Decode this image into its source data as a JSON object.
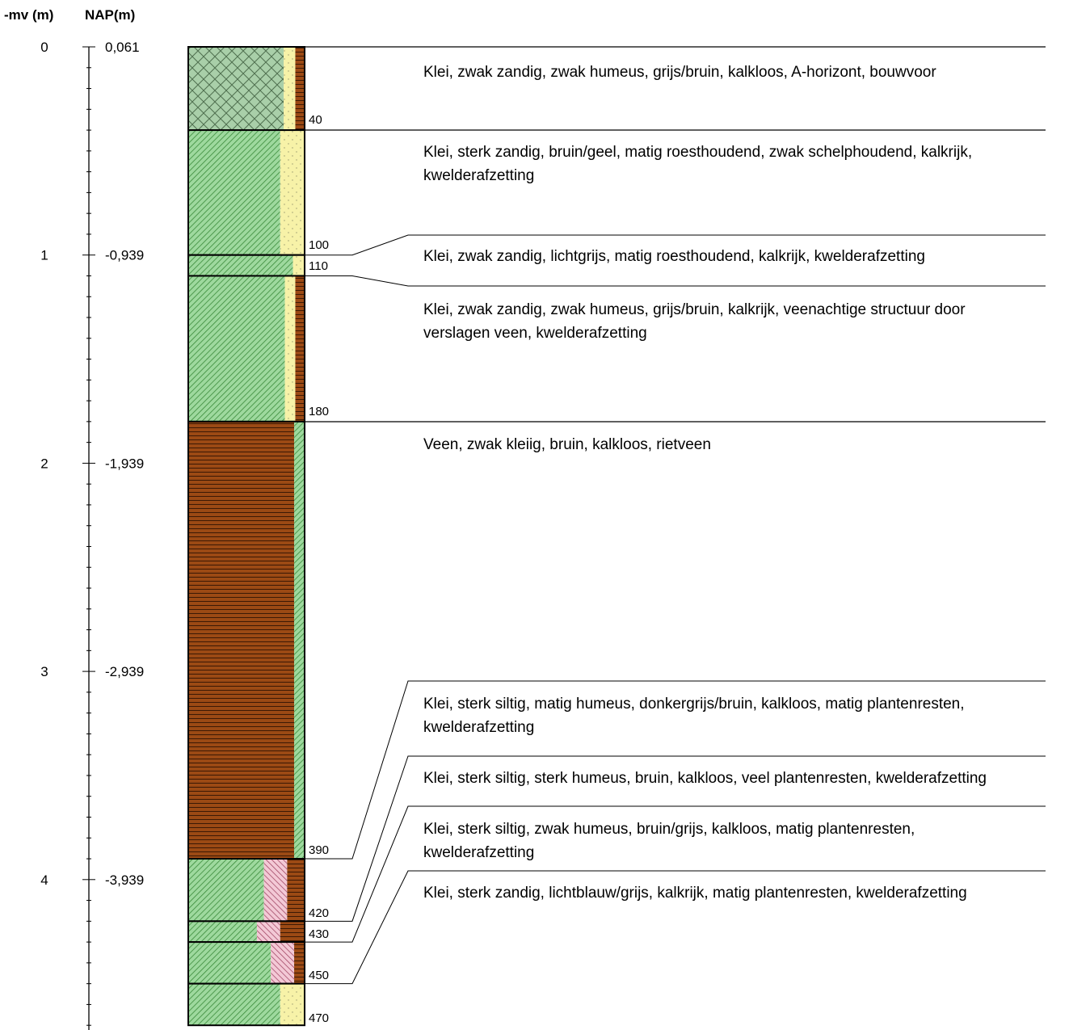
{
  "headers": {
    "mv": "-mv (m)",
    "nap": "NAP(m)"
  },
  "axis": {
    "mv_labels": [
      "0",
      "1",
      "2",
      "3",
      "4"
    ],
    "nap_labels": [
      "0,061",
      "-0,939",
      "-1,939",
      "-2,939",
      "-3,939"
    ]
  },
  "colors": {
    "clay": "#9ed99e",
    "clay_hatch": "#3a8a3a",
    "peat": "#9c4a14",
    "peat_line": "#3d1a05",
    "sand": "#f7f2a8",
    "silt": "#f3c9d6",
    "silt_hatch": "#9a3a5a",
    "topsoil": "#a9cfa9"
  },
  "layers": [
    {
      "top": 0,
      "bottom": 40,
      "depth_label": "40",
      "lines": [
        "Klei, zwak zandig, zwak humeus, grijs/bruin, kalkloos, A-horizont, bouwvoor"
      ],
      "columns": [
        [
          "topsoil",
          0.82
        ],
        [
          "sand",
          0.1
        ],
        [
          "peat",
          0.08
        ]
      ]
    },
    {
      "top": 40,
      "bottom": 100,
      "depth_label": "100",
      "lines": [
        "Klei, sterk zandig, bruin/geel, matig roesthoudend, zwak schelphoudend, kalkrijk,",
        "kwelderafzetting"
      ],
      "columns": [
        [
          "clay",
          0.79
        ],
        [
          "sand",
          0.21
        ]
      ]
    },
    {
      "top": 100,
      "bottom": 110,
      "depth_label": "110",
      "lines": [
        "Klei, zwak zandig, lichtgrijs, matig roesthoudend, kalkrijk, kwelderafzetting"
      ],
      "columns": [
        [
          "clay",
          0.9
        ],
        [
          "sand",
          0.1
        ]
      ]
    },
    {
      "top": 110,
      "bottom": 180,
      "depth_label": "180",
      "lines": [
        "Klei, zwak zandig, zwak humeus, grijs/bruin, kalkrijk, veenachtige structuur door",
        "verslagen veen, kwelderafzetting"
      ],
      "columns": [
        [
          "clay",
          0.83
        ],
        [
          "sand",
          0.09
        ],
        [
          "peat",
          0.08
        ]
      ]
    },
    {
      "top": 180,
      "bottom": 390,
      "depth_label": "390",
      "lines": [
        "Veen, zwak kleiig, bruin, kalkloos, rietveen"
      ],
      "columns": [
        [
          "peat",
          0.91
        ],
        [
          "clay",
          0.09
        ]
      ]
    },
    {
      "top": 390,
      "bottom": 420,
      "depth_label": "420",
      "lines": [
        "Klei, sterk siltig, matig humeus, donkergrijs/bruin, kalkloos, matig plantenresten,",
        "kwelderafzetting"
      ],
      "columns": [
        [
          "clay",
          0.65
        ],
        [
          "silt",
          0.2
        ],
        [
          "peat",
          0.15
        ]
      ]
    },
    {
      "top": 420,
      "bottom": 430,
      "depth_label": "430",
      "lines": [
        "Klei, sterk siltig, sterk humeus, bruin, kalkloos, veel plantenresten, kwelderafzetting"
      ],
      "columns": [
        [
          "clay",
          0.59
        ],
        [
          "silt",
          0.2
        ],
        [
          "peat",
          0.21
        ]
      ]
    },
    {
      "top": 430,
      "bottom": 450,
      "depth_label": "450",
      "lines": [
        "Klei, sterk siltig, zwak humeus, bruin/grijs, kalkloos, matig plantenresten,",
        "kwelderafzetting"
      ],
      "columns": [
        [
          "clay",
          0.71
        ],
        [
          "silt",
          0.2
        ],
        [
          "peat",
          0.09
        ]
      ]
    },
    {
      "top": 450,
      "bottom": 470,
      "depth_label": "470",
      "lines": [
        "Klei, sterk zandig, lichtblauw/grijs, kalkrijk, matig plantenresten, kwelderafzetting"
      ],
      "columns": [
        [
          "clay",
          0.79
        ],
        [
          "sand",
          0.21
        ]
      ]
    }
  ]
}
